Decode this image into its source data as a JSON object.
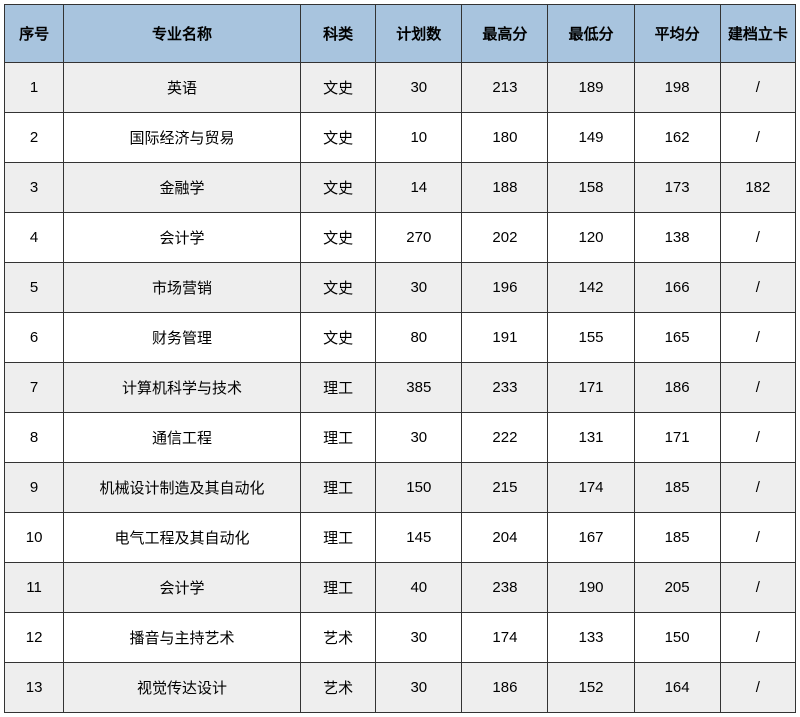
{
  "table": {
    "columns": [
      {
        "key": "seq",
        "label": "序号",
        "class": "col-seq"
      },
      {
        "key": "major",
        "label": "专业名称",
        "class": "col-major"
      },
      {
        "key": "category",
        "label": "科类",
        "class": "col-cat"
      },
      {
        "key": "plan",
        "label": "计划数",
        "class": "col-plan"
      },
      {
        "key": "max",
        "label": "最高分",
        "class": "col-max"
      },
      {
        "key": "min",
        "label": "最低分",
        "class": "col-min"
      },
      {
        "key": "avg",
        "label": "平均分",
        "class": "col-avg"
      },
      {
        "key": "jdlk",
        "label": "建档立卡",
        "class": "col-jdlk"
      }
    ],
    "rows": [
      {
        "seq": "1",
        "major": "英语",
        "category": "文史",
        "plan": "30",
        "max": "213",
        "min": "189",
        "avg": "198",
        "jdlk": "/"
      },
      {
        "seq": "2",
        "major": "国际经济与贸易",
        "category": "文史",
        "plan": "10",
        "max": "180",
        "min": "149",
        "avg": "162",
        "jdlk": "/"
      },
      {
        "seq": "3",
        "major": "金融学",
        "category": "文史",
        "plan": "14",
        "max": "188",
        "min": "158",
        "avg": "173",
        "jdlk": "182"
      },
      {
        "seq": "4",
        "major": "会计学",
        "category": "文史",
        "plan": "270",
        "max": "202",
        "min": "120",
        "avg": "138",
        "jdlk": "/"
      },
      {
        "seq": "5",
        "major": "市场营销",
        "category": "文史",
        "plan": "30",
        "max": "196",
        "min": "142",
        "avg": "166",
        "jdlk": "/"
      },
      {
        "seq": "6",
        "major": "财务管理",
        "category": "文史",
        "plan": "80",
        "max": "191",
        "min": "155",
        "avg": "165",
        "jdlk": "/"
      },
      {
        "seq": "7",
        "major": "计算机科学与技术",
        "category": "理工",
        "plan": "385",
        "max": "233",
        "min": "171",
        "avg": "186",
        "jdlk": "/"
      },
      {
        "seq": "8",
        "major": "通信工程",
        "category": "理工",
        "plan": "30",
        "max": "222",
        "min": "131",
        "avg": "171",
        "jdlk": "/"
      },
      {
        "seq": "9",
        "major": "机械设计制造及其自动化",
        "category": "理工",
        "plan": "150",
        "max": "215",
        "min": "174",
        "avg": "185",
        "jdlk": "/"
      },
      {
        "seq": "10",
        "major": "电气工程及其自动化",
        "category": "理工",
        "plan": "145",
        "max": "204",
        "min": "167",
        "avg": "185",
        "jdlk": "/"
      },
      {
        "seq": "11",
        "major": "会计学",
        "category": "理工",
        "plan": "40",
        "max": "238",
        "min": "190",
        "avg": "205",
        "jdlk": "/"
      },
      {
        "seq": "12",
        "major": "播音与主持艺术",
        "category": "艺术",
        "plan": "30",
        "max": "174",
        "min": "133",
        "avg": "150",
        "jdlk": "/"
      },
      {
        "seq": "13",
        "major": "视觉传达设计",
        "category": "艺术",
        "plan": "30",
        "max": "186",
        "min": "152",
        "avg": "164",
        "jdlk": "/"
      }
    ],
    "header_bg": "#a8c4de",
    "row_odd_bg": "#eeeeee",
    "row_even_bg": "#ffffff",
    "border_color": "#333333"
  }
}
